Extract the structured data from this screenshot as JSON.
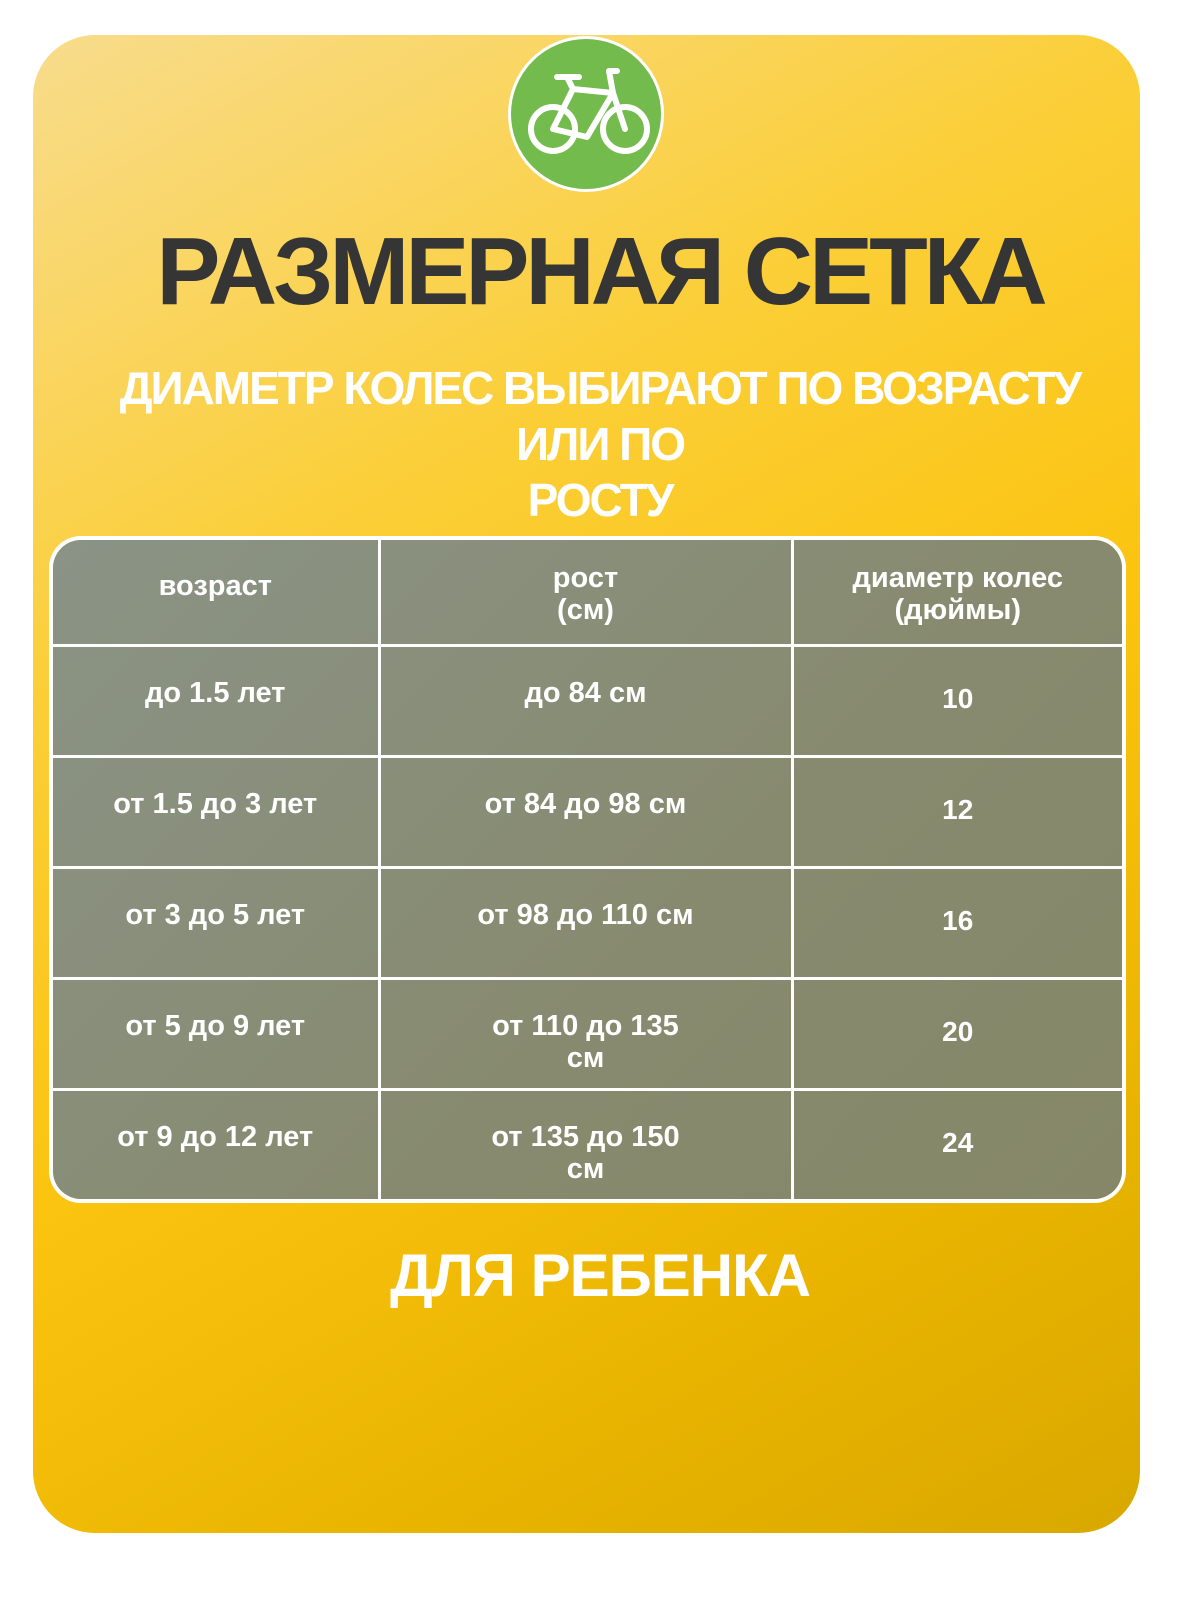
{
  "logo": {
    "icon": "bicycle-icon",
    "color": "#72bb4c"
  },
  "title": "РАЗМЕРНАЯ СЕТКА",
  "subtitle_lines": [
    "ДИАМЕТР КОЛЕС ВЫБИРАЮТ ПО ВОЗРАСТУ ИЛИ ПО",
    "РОСТУ"
  ],
  "table": {
    "headers": [
      [
        "возраст"
      ],
      [
        "рост",
        "(см)"
      ],
      [
        "диаметр колес",
        "(дюймы)"
      ]
    ],
    "rows": [
      {
        "age": "до 1.5 лет",
        "height": "до 84 см",
        "wheel": "10"
      },
      {
        "age": "от 1.5 до 3 лет",
        "height": "от 84 до 98 см",
        "wheel": "12"
      },
      {
        "age": "от 3 до 5 лет",
        "height": "от 98 до 110 см",
        "wheel": "16"
      },
      {
        "age": "от 5 до 9 лет",
        "height": "от 110 до 135 см",
        "wheel": "20"
      },
      {
        "age": "от 9 до 12 лет",
        "height": "от 135 до 150 см",
        "wheel": "24"
      }
    ]
  },
  "footer": "ДЛЯ РЕБЕНКА",
  "colors": {
    "title": "#353535",
    "card_top": "#f8dc8c",
    "card_mid": "#fbc410",
    "card_bottom": "#d9a800",
    "table": "#878a6e"
  }
}
